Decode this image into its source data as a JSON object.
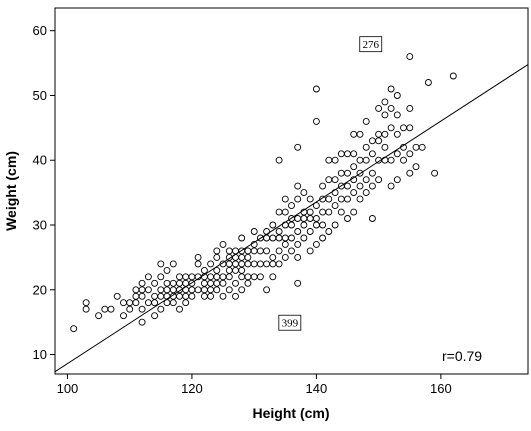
{
  "chart_data": {
    "type": "scatter",
    "title": "",
    "xlabel": "Height (cm)",
    "ylabel": "Weight (cm)",
    "xlim": [
      98,
      174
    ],
    "ylim": [
      7,
      63.5
    ],
    "x_ticks": [
      100,
      120,
      140,
      160
    ],
    "y_ticks": [
      10,
      20,
      30,
      40,
      50,
      60
    ],
    "x_tick_labels": [
      "100",
      "120",
      "140",
      "160"
    ],
    "y_tick_labels": [
      "10",
      "20",
      "30",
      "40",
      "50",
      "60"
    ],
    "grid": false,
    "marker": "open-circle",
    "fit_line": {
      "slope": 0.624,
      "intercept": -53.8
    },
    "annotations": [
      {
        "label": "276",
        "x": 146,
        "y": 60
      },
      {
        "label": "399",
        "x": 133,
        "y": 17
      }
    ],
    "r_label": "r=0.79",
    "points": [
      [
        101,
        14
      ],
      [
        103,
        17
      ],
      [
        103,
        18
      ],
      [
        105,
        16
      ],
      [
        106,
        17
      ],
      [
        107,
        17
      ],
      [
        108,
        19
      ],
      [
        109,
        16
      ],
      [
        109,
        18
      ],
      [
        110,
        17
      ],
      [
        110,
        18
      ],
      [
        111,
        18
      ],
      [
        111,
        19
      ],
      [
        111,
        20
      ],
      [
        112,
        15
      ],
      [
        112,
        17
      ],
      [
        112,
        19
      ],
      [
        112,
        20
      ],
      [
        112,
        21
      ],
      [
        113,
        18
      ],
      [
        113,
        20
      ],
      [
        113,
        22
      ],
      [
        114,
        16
      ],
      [
        114,
        18
      ],
      [
        114,
        19
      ],
      [
        114,
        21
      ],
      [
        115,
        17
      ],
      [
        115,
        19
      ],
      [
        115,
        20
      ],
      [
        115,
        22
      ],
      [
        115,
        24
      ],
      [
        116,
        18
      ],
      [
        116,
        19
      ],
      [
        116,
        20
      ],
      [
        116,
        21
      ],
      [
        116,
        23
      ],
      [
        117,
        18
      ],
      [
        117,
        19
      ],
      [
        117,
        20
      ],
      [
        117,
        21
      ],
      [
        117,
        24
      ],
      [
        118,
        17
      ],
      [
        118,
        19
      ],
      [
        118,
        20
      ],
      [
        118,
        21
      ],
      [
        118,
        22
      ],
      [
        119,
        18
      ],
      [
        119,
        19
      ],
      [
        119,
        20
      ],
      [
        119,
        21
      ],
      [
        119,
        22
      ],
      [
        120,
        19
      ],
      [
        120,
        20
      ],
      [
        120,
        21
      ],
      [
        120,
        22
      ],
      [
        121,
        20
      ],
      [
        121,
        22
      ],
      [
        121,
        24
      ],
      [
        121,
        25
      ],
      [
        122,
        19
      ],
      [
        122,
        20
      ],
      [
        122,
        21
      ],
      [
        122,
        22
      ],
      [
        122,
        23
      ],
      [
        123,
        19
      ],
      [
        123,
        20
      ],
      [
        123,
        21
      ],
      [
        123,
        22
      ],
      [
        123,
        24
      ],
      [
        124,
        20
      ],
      [
        124,
        21
      ],
      [
        124,
        22
      ],
      [
        124,
        23
      ],
      [
        124,
        25
      ],
      [
        124,
        26
      ],
      [
        125,
        19
      ],
      [
        125,
        21
      ],
      [
        125,
        22
      ],
      [
        125,
        24
      ],
      [
        125,
        27
      ],
      [
        126,
        20
      ],
      [
        126,
        22
      ],
      [
        126,
        23
      ],
      [
        126,
        24
      ],
      [
        126,
        25
      ],
      [
        126,
        26
      ],
      [
        127,
        19
      ],
      [
        127,
        21
      ],
      [
        127,
        23
      ],
      [
        127,
        24
      ],
      [
        127,
        25
      ],
      [
        127,
        26
      ],
      [
        128,
        20
      ],
      [
        128,
        22
      ],
      [
        128,
        23
      ],
      [
        128,
        24
      ],
      [
        128,
        25
      ],
      [
        128,
        26
      ],
      [
        128,
        28
      ],
      [
        129,
        21
      ],
      [
        129,
        22
      ],
      [
        129,
        24
      ],
      [
        129,
        25
      ],
      [
        129,
        26
      ],
      [
        130,
        22
      ],
      [
        130,
        24
      ],
      [
        130,
        26
      ],
      [
        130,
        27
      ],
      [
        130,
        29
      ],
      [
        131,
        22
      ],
      [
        131,
        24
      ],
      [
        131,
        26
      ],
      [
        131,
        28
      ],
      [
        132,
        20
      ],
      [
        132,
        24
      ],
      [
        132,
        26
      ],
      [
        132,
        28
      ],
      [
        132,
        29
      ],
      [
        133,
        22
      ],
      [
        133,
        24
      ],
      [
        133,
        25
      ],
      [
        133,
        28
      ],
      [
        133,
        30
      ],
      [
        134,
        24
      ],
      [
        134,
        26
      ],
      [
        134,
        28
      ],
      [
        134,
        29
      ],
      [
        134,
        32
      ],
      [
        134,
        40
      ],
      [
        135,
        25
      ],
      [
        135,
        27
      ],
      [
        135,
        28
      ],
      [
        135,
        30
      ],
      [
        135,
        32
      ],
      [
        135,
        34
      ],
      [
        136,
        26
      ],
      [
        136,
        28
      ],
      [
        136,
        30
      ],
      [
        136,
        31
      ],
      [
        136,
        33
      ],
      [
        137,
        21
      ],
      [
        137,
        25
      ],
      [
        137,
        27
      ],
      [
        137,
        29
      ],
      [
        137,
        31
      ],
      [
        137,
        34
      ],
      [
        137,
        36
      ],
      [
        137,
        42
      ],
      [
        138,
        28
      ],
      [
        138,
        30
      ],
      [
        138,
        31
      ],
      [
        138,
        32
      ],
      [
        138,
        35
      ],
      [
        139,
        26
      ],
      [
        139,
        29
      ],
      [
        139,
        31
      ],
      [
        139,
        32
      ],
      [
        139,
        34
      ],
      [
        140,
        27
      ],
      [
        140,
        30
      ],
      [
        140,
        31
      ],
      [
        140,
        33
      ],
      [
        140,
        46
      ],
      [
        140,
        51
      ],
      [
        141,
        28
      ],
      [
        141,
        30
      ],
      [
        141,
        32
      ],
      [
        141,
        34
      ],
      [
        141,
        36
      ],
      [
        142,
        29
      ],
      [
        142,
        32
      ],
      [
        142,
        34
      ],
      [
        142,
        37
      ],
      [
        142,
        40
      ],
      [
        143,
        30
      ],
      [
        143,
        33
      ],
      [
        143,
        35
      ],
      [
        143,
        37
      ],
      [
        143,
        40
      ],
      [
        144,
        32
      ],
      [
        144,
        34
      ],
      [
        144,
        36
      ],
      [
        144,
        38
      ],
      [
        144,
        41
      ],
      [
        145,
        31
      ],
      [
        145,
        34
      ],
      [
        145,
        36
      ],
      [
        145,
        38
      ],
      [
        145,
        41
      ],
      [
        146,
        32
      ],
      [
        146,
        35
      ],
      [
        146,
        37
      ],
      [
        146,
        39
      ],
      [
        146,
        41
      ],
      [
        146,
        44
      ],
      [
        147,
        34
      ],
      [
        147,
        36
      ],
      [
        147,
        38
      ],
      [
        147,
        40
      ],
      [
        147,
        44
      ],
      [
        148,
        35
      ],
      [
        148,
        37
      ],
      [
        148,
        40
      ],
      [
        148,
        42
      ],
      [
        148,
        46
      ],
      [
        149,
        31
      ],
      [
        149,
        36
      ],
      [
        149,
        38
      ],
      [
        149,
        41
      ],
      [
        149,
        43
      ],
      [
        150,
        37
      ],
      [
        150,
        40
      ],
      [
        150,
        43
      ],
      [
        150,
        44
      ],
      [
        150,
        48
      ],
      [
        151,
        40
      ],
      [
        151,
        42
      ],
      [
        151,
        44
      ],
      [
        151,
        47
      ],
      [
        151,
        49
      ],
      [
        152,
        36
      ],
      [
        152,
        40
      ],
      [
        152,
        45
      ],
      [
        152,
        48
      ],
      [
        152,
        51
      ],
      [
        153,
        37
      ],
      [
        153,
        41
      ],
      [
        153,
        44
      ],
      [
        153,
        47
      ],
      [
        153,
        50
      ],
      [
        154,
        40
      ],
      [
        154,
        42
      ],
      [
        154,
        45
      ],
      [
        155,
        38
      ],
      [
        155,
        41
      ],
      [
        155,
        45
      ],
      [
        155,
        48
      ],
      [
        155,
        56
      ],
      [
        156,
        39
      ],
      [
        156,
        42
      ],
      [
        157,
        42
      ],
      [
        158,
        52
      ],
      [
        159,
        38
      ],
      [
        162,
        53
      ]
    ]
  }
}
